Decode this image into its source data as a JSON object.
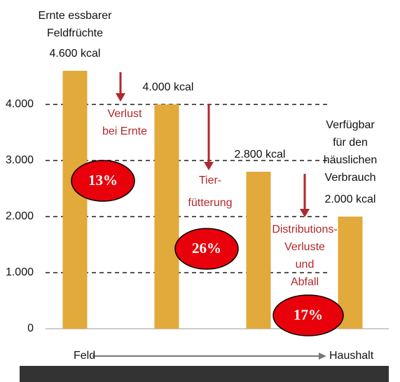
{
  "chart_data": {
    "type": "bar",
    "categories": [
      null,
      null,
      null,
      null
    ],
    "values": [
      4600,
      4000,
      2800,
      2000
    ],
    "value_labels": [
      "4.600 kcal",
      "4.000 kcal",
      "2.800 kcal",
      "2.000 kcal"
    ],
    "bar_titles": [
      [
        "Ernte essbarer",
        "Feldfrüchte"
      ],
      null,
      null,
      [
        "Verfügbar",
        "für den",
        "häuslichen",
        "Verbrauch"
      ]
    ],
    "color": "#e2a93b",
    "ylim": [
      0,
      4600
    ],
    "yticks": [
      0,
      {
        "value": 1000,
        "label": "1.000"
      },
      {
        "value": 2000,
        "label": "2.000"
      },
      {
        "value": 3000,
        "label": "3.000"
      },
      {
        "value": 4000,
        "label": "4.000"
      }
    ],
    "grid": true,
    "losses": {
      "labels": [
        [
          "Verlust",
          "bei Ernte"
        ],
        [
          "Tier-",
          "fütterung"
        ],
        [
          "Distributions-",
          "Verluste",
          "und",
          "Abfall"
        ]
      ],
      "values": [
        13,
        26,
        17
      ],
      "value_labels": [
        "13%",
        "26%",
        "17%"
      ],
      "color": "#e8000b",
      "text_color": "#b0282c"
    },
    "x_axis": {
      "start": "Feld",
      "end": "Haushalt"
    }
  }
}
